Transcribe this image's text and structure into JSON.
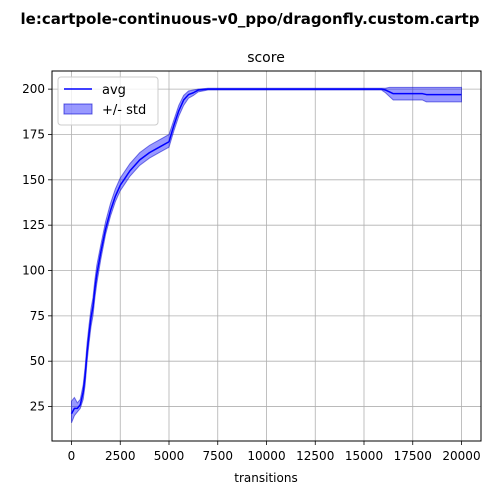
{
  "figure_title": "le:cartpole-continuous-v0_ppo/dragonfly.custom.cartp",
  "chart_data": {
    "type": "line",
    "title": "score",
    "xlabel": "transitions",
    "ylabel": "",
    "xlim": [
      -1000,
      21000
    ],
    "ylim": [
      6,
      210
    ],
    "xticks": [
      0,
      2500,
      5000,
      7500,
      10000,
      12500,
      15000,
      17500,
      20000
    ],
    "yticks": [
      25,
      50,
      75,
      100,
      125,
      150,
      175,
      200
    ],
    "grid": true,
    "legend_position": "upper-left",
    "colors": {
      "line": "#0000ff",
      "band_fill": "#0000ff",
      "band_edge": "#0000cc"
    },
    "series": [
      {
        "name": "avg",
        "kind": "line",
        "x": [
          0,
          150,
          300,
          450,
          600,
          700,
          800,
          900,
          1000,
          1100,
          1200,
          1300,
          1500,
          1750,
          2000,
          2250,
          2500,
          3000,
          3500,
          4000,
          4500,
          5000,
          5250,
          5500,
          5750,
          6000,
          6250,
          6500,
          7000,
          8000,
          10000,
          12000,
          14000,
          15000,
          15500,
          15900,
          16100,
          16300,
          16500,
          17000,
          17500,
          18000,
          18200,
          19000,
          20000
        ],
        "y": [
          21,
          24,
          24,
          26,
          33,
          42,
          55,
          65,
          74,
          80,
          90,
          98,
          110,
          123,
          133,
          141,
          147,
          155,
          161,
          165,
          168,
          171,
          180,
          188,
          194,
          197,
          198,
          199.5,
          200,
          200,
          200,
          200,
          200,
          200,
          200,
          200,
          199.5,
          198.5,
          197.5,
          197.5,
          197.5,
          197.5,
          197,
          197,
          197
        ]
      },
      {
        "name": "+/- std",
        "kind": "band",
        "x": [
          0,
          150,
          300,
          450,
          600,
          700,
          800,
          900,
          1000,
          1100,
          1200,
          1300,
          1500,
          1750,
          2000,
          2250,
          2500,
          3000,
          3500,
          4000,
          4500,
          5000,
          5250,
          5500,
          5750,
          6000,
          6250,
          6500,
          7000,
          8000,
          10000,
          12000,
          14000,
          15000,
          15500,
          15900,
          16100,
          16300,
          16500,
          17000,
          17500,
          18000,
          18200,
          19000,
          20000
        ],
        "lower": [
          16,
          20,
          22,
          24,
          29,
          37,
          50,
          60,
          69,
          75,
          85,
          93,
          106,
          120,
          130,
          138,
          144,
          152,
          158,
          162,
          165,
          168,
          177,
          185,
          191,
          195,
          196.5,
          198.5,
          199.5,
          199.5,
          199.5,
          199.5,
          199.5,
          199.5,
          199.5,
          199.5,
          198,
          196,
          194,
          194,
          194,
          194,
          193,
          193,
          193
        ],
        "upper": [
          28,
          30,
          27,
          29,
          37,
          47,
          60,
          70,
          79,
          85,
          95,
          103,
          114,
          127,
          137,
          145,
          151,
          159,
          165,
          169,
          172,
          175,
          183,
          191,
          196.5,
          199,
          199.5,
          200,
          200.5,
          200.5,
          200.5,
          200.5,
          200.5,
          200.5,
          200.5,
          200.5,
          200.5,
          201,
          201,
          201,
          201,
          201,
          201,
          201,
          201
        ]
      }
    ]
  }
}
